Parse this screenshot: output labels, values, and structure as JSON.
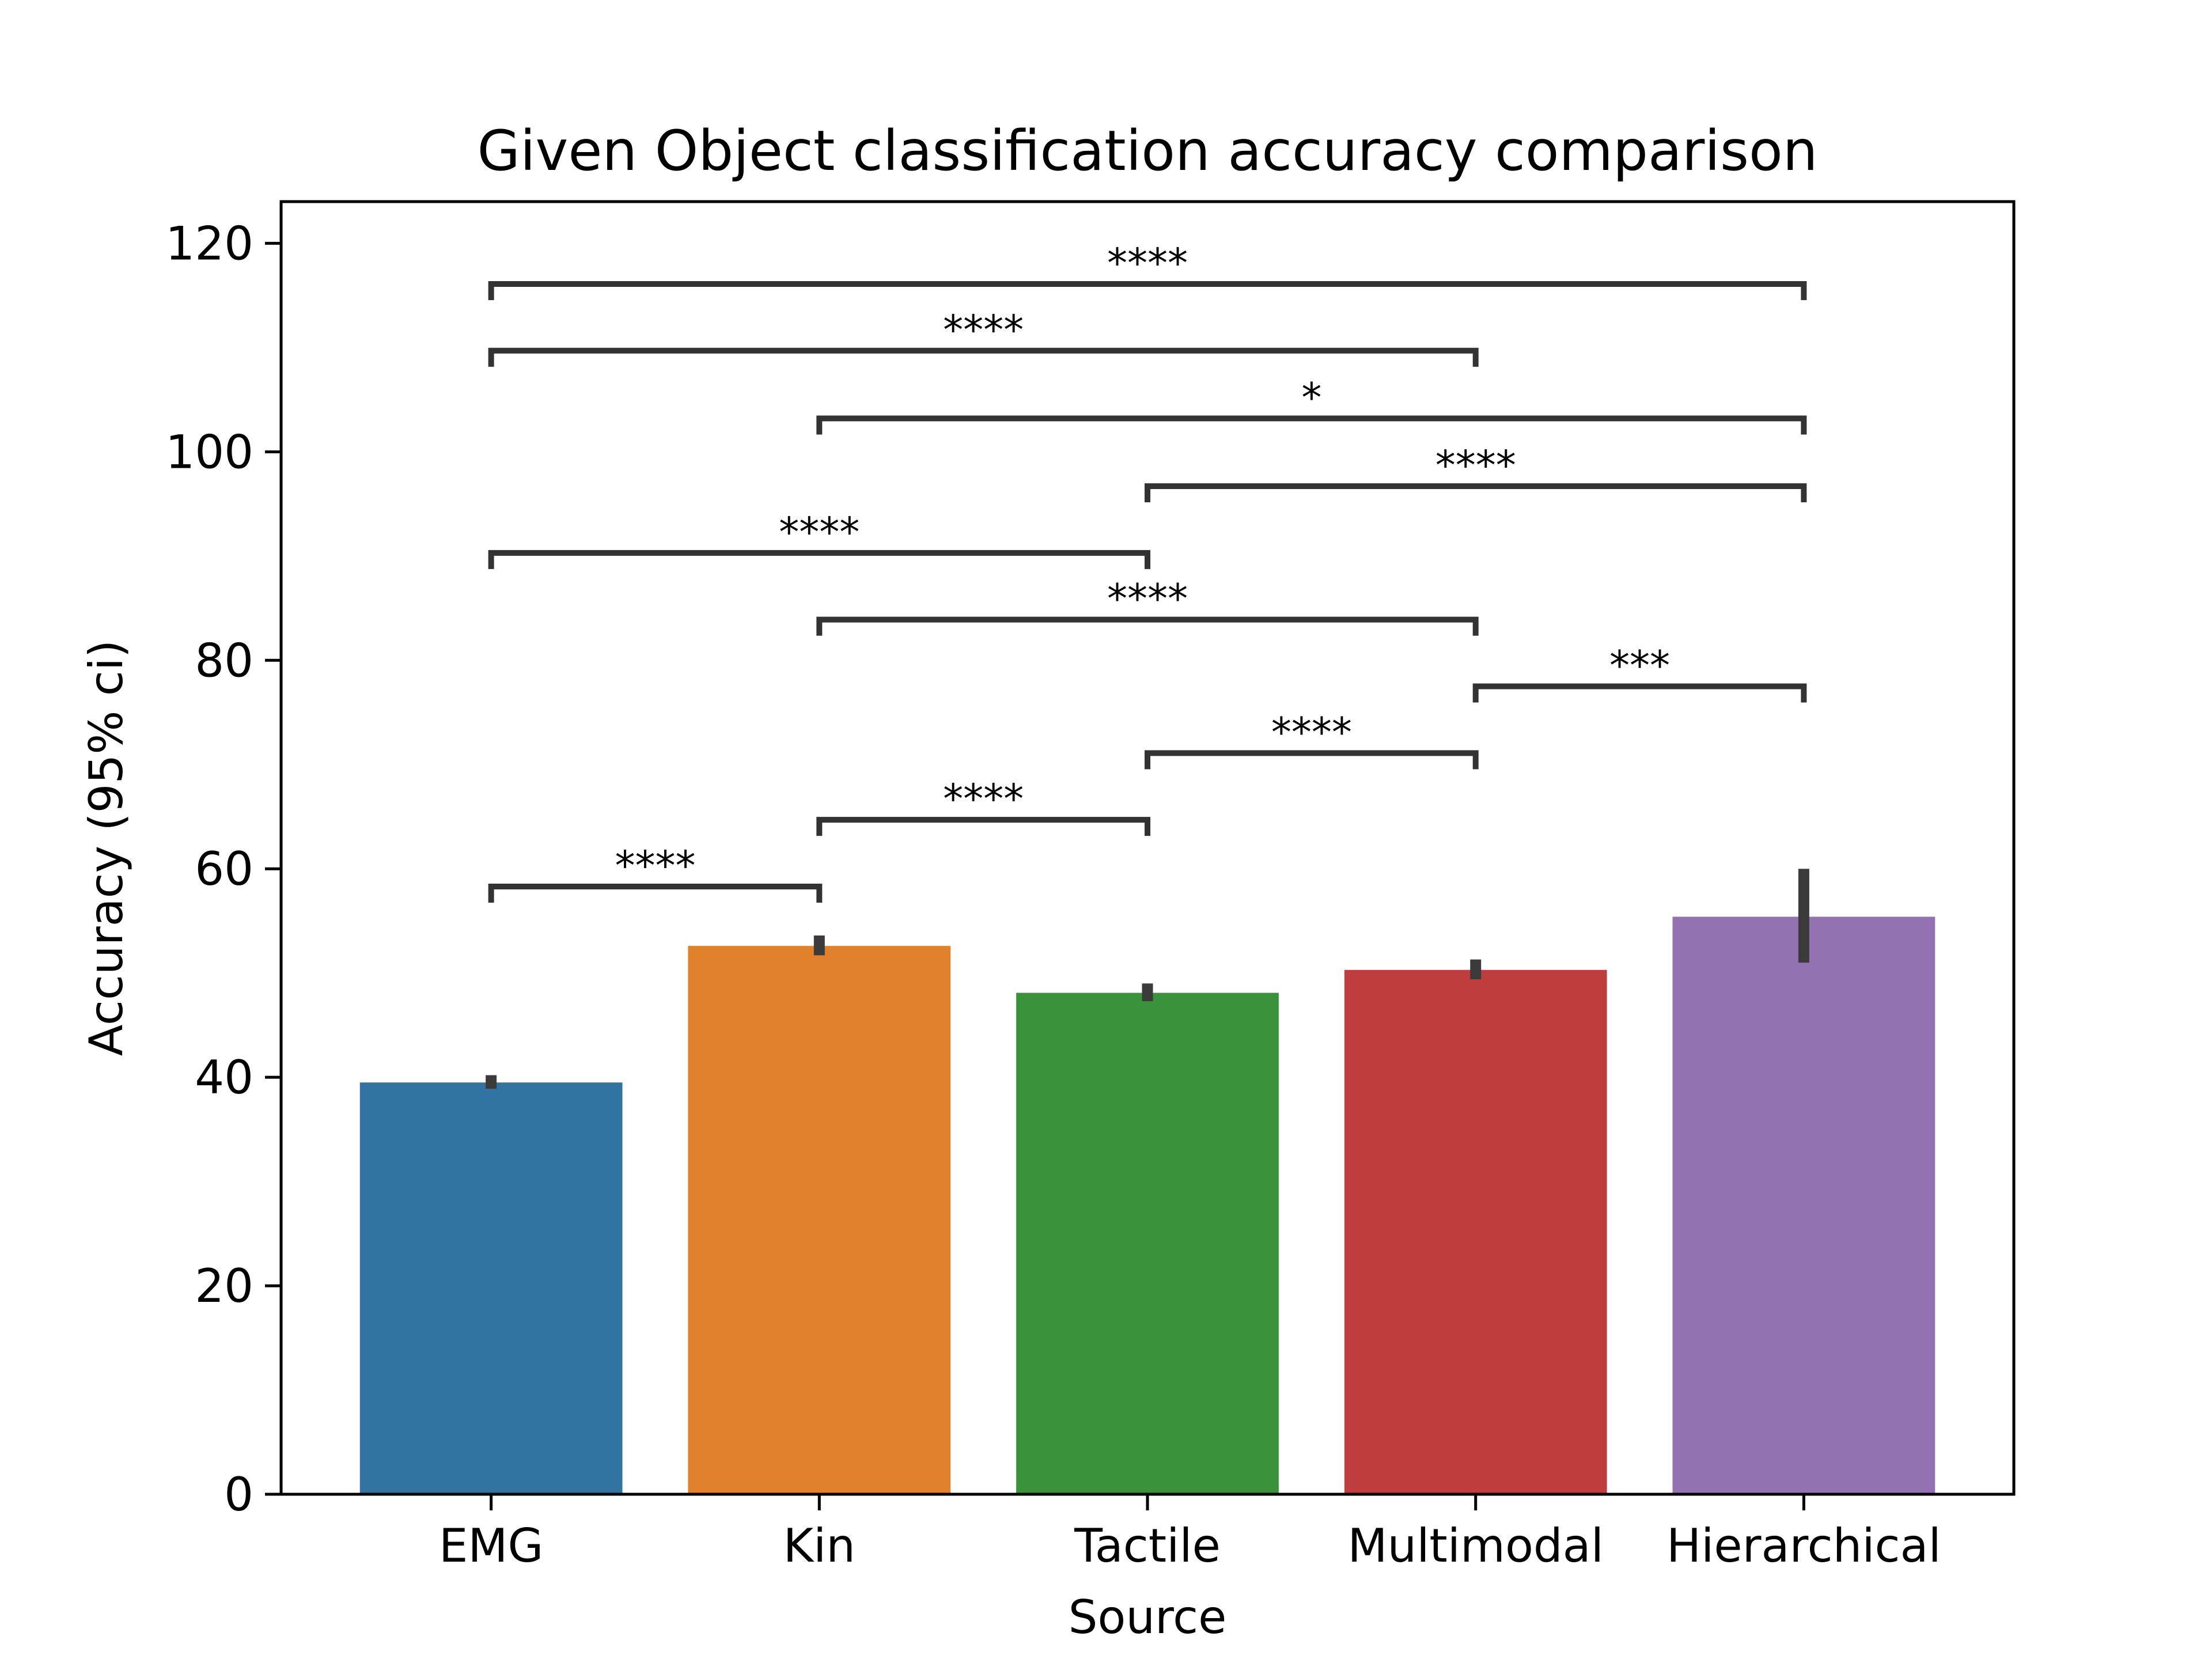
{
  "chart_data": {
    "type": "bar",
    "title": "Given Object classification accuracy comparison",
    "xlabel": "Source",
    "ylabel": "Accuracy (95% ci)",
    "categories": [
      "EMG",
      "Kin",
      "Tactile",
      "Multimodal",
      "Hierarchical"
    ],
    "values": [
      39.5,
      52.6,
      48.1,
      50.3,
      55.4
    ],
    "ci": [
      [
        38.9,
        40.2
      ],
      [
        51.7,
        53.6
      ],
      [
        47.3,
        49.0
      ],
      [
        49.4,
        51.3
      ],
      [
        51.0,
        60.0
      ]
    ],
    "colors": [
      "#3274a1",
      "#e1812c",
      "#3a923a",
      "#c03d3e",
      "#9372b2"
    ],
    "ylim": [
      0,
      124
    ],
    "yticks": [
      0,
      20,
      40,
      60,
      80,
      100,
      120
    ],
    "grid": false,
    "legend": "none",
    "annotations": [
      {
        "from": 0,
        "to": 1,
        "y": 58.3,
        "label": "****"
      },
      {
        "from": 1,
        "to": 2,
        "y": 64.7,
        "label": "****"
      },
      {
        "from": 2,
        "to": 3,
        "y": 71.1,
        "label": "****"
      },
      {
        "from": 3,
        "to": 4,
        "y": 77.5,
        "label": "***"
      },
      {
        "from": 1,
        "to": 3,
        "y": 83.9,
        "label": "****"
      },
      {
        "from": 0,
        "to": 2,
        "y": 90.3,
        "label": "****"
      },
      {
        "from": 2,
        "to": 4,
        "y": 96.7,
        "label": "****"
      },
      {
        "from": 1,
        "to": 4,
        "y": 103.2,
        "label": "*"
      },
      {
        "from": 0,
        "to": 3,
        "y": 109.7,
        "label": "****"
      },
      {
        "from": 0,
        "to": 4,
        "y": 116.1,
        "label": "****"
      }
    ]
  }
}
